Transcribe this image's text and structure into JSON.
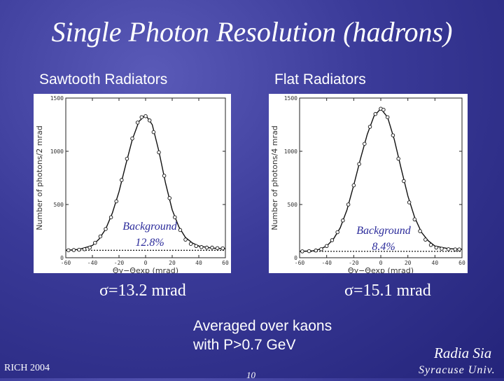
{
  "title": "Single Photon Resolution (hadrons)",
  "note_lines": [
    "Averaged over kaons",
    "with P>0.7 GeV"
  ],
  "footer": {
    "left": "RICH 2004",
    "page": "10",
    "author": "Radia Sia",
    "affiliation": "Syracuse Univ."
  },
  "chart_data": [
    {
      "type": "line",
      "title": "Sawtooth Radiators",
      "xlabel": "Θγ−Θexp (mrad)",
      "ylabel": "Number of photons/2 mrad",
      "xlim": [
        -60,
        60
      ],
      "ylim": [
        0,
        1500
      ],
      "xticks": [
        "-60",
        "-40",
        "-20",
        "0",
        "20",
        "40",
        "60"
      ],
      "yticks": [
        "0",
        "500",
        "1000",
        "1500"
      ],
      "background_level": 70,
      "annotation": [
        "Background",
        "12.8%"
      ],
      "sigma_text": "σ=13.2 mrad",
      "points": [
        [
          -58,
          70
        ],
        [
          -54,
          72
        ],
        [
          -50,
          75
        ],
        [
          -46,
          80
        ],
        [
          -42,
          95
        ],
        [
          -38,
          140
        ],
        [
          -34,
          200
        ],
        [
          -30,
          270
        ],
        [
          -26,
          380
        ],
        [
          -22,
          530
        ],
        [
          -18,
          730
        ],
        [
          -14,
          930
        ],
        [
          -10,
          1120
        ],
        [
          -6,
          1270
        ],
        [
          -3,
          1320
        ],
        [
          0,
          1330
        ],
        [
          3,
          1290
        ],
        [
          6,
          1180
        ],
        [
          10,
          990
        ],
        [
          14,
          770
        ],
        [
          18,
          560
        ],
        [
          22,
          380
        ],
        [
          26,
          260
        ],
        [
          30,
          170
        ],
        [
          34,
          130
        ],
        [
          38,
          110
        ],
        [
          42,
          100
        ],
        [
          46,
          95
        ],
        [
          50,
          95
        ],
        [
          54,
          90
        ],
        [
          58,
          88
        ]
      ],
      "fit": [
        [
          -60,
          70
        ],
        [
          -50,
          78
        ],
        [
          -40,
          115
        ],
        [
          -35,
          175
        ],
        [
          -30,
          270
        ],
        [
          -25,
          420
        ],
        [
          -20,
          620
        ],
        [
          -15,
          870
        ],
        [
          -10,
          1110
        ],
        [
          -5,
          1280
        ],
        [
          0,
          1340
        ],
        [
          5,
          1250
        ],
        [
          10,
          1000
        ],
        [
          15,
          700
        ],
        [
          20,
          450
        ],
        [
          25,
          290
        ],
        [
          30,
          190
        ],
        [
          35,
          140
        ],
        [
          40,
          110
        ],
        [
          50,
          90
        ],
        [
          60,
          85
        ]
      ]
    },
    {
      "type": "line",
      "title": "Flat Radiators",
      "xlabel": "Θγ−Θexp (mrad)",
      "ylabel": "Number of photons/4 mrad",
      "xlim": [
        -60,
        60
      ],
      "ylim": [
        0,
        1500
      ],
      "xticks": [
        "-60",
        "-40",
        "-20",
        "0",
        "20",
        "40",
        "60"
      ],
      "yticks": [
        "0",
        "500",
        "1000",
        "1500"
      ],
      "background_level": 60,
      "annotation": [
        "Background",
        "8.4%"
      ],
      "sigma_text": "σ=15.1 mrad",
      "points": [
        [
          -58,
          60
        ],
        [
          -53,
          62
        ],
        [
          -48,
          68
        ],
        [
          -44,
          80
        ],
        [
          -40,
          110
        ],
        [
          -36,
          165
        ],
        [
          -32,
          240
        ],
        [
          -28,
          350
        ],
        [
          -24,
          500
        ],
        [
          -20,
          680
        ],
        [
          -16,
          880
        ],
        [
          -12,
          1070
        ],
        [
          -8,
          1230
        ],
        [
          -4,
          1350
        ],
        [
          0,
          1400
        ],
        [
          2,
          1390
        ],
        [
          5,
          1320
        ],
        [
          9,
          1150
        ],
        [
          13,
          930
        ],
        [
          17,
          720
        ],
        [
          21,
          520
        ],
        [
          25,
          360
        ],
        [
          29,
          250
        ],
        [
          33,
          170
        ],
        [
          37,
          120
        ],
        [
          41,
          95
        ],
        [
          45,
          85
        ],
        [
          50,
          80
        ],
        [
          55,
          78
        ],
        [
          58,
          78
        ]
      ],
      "fit": [
        [
          -60,
          60
        ],
        [
          -50,
          65
        ],
        [
          -45,
          80
        ],
        [
          -40,
          110
        ],
        [
          -35,
          175
        ],
        [
          -30,
          280
        ],
        [
          -25,
          450
        ],
        [
          -20,
          680
        ],
        [
          -15,
          930
        ],
        [
          -10,
          1160
        ],
        [
          -5,
          1330
        ],
        [
          0,
          1400
        ],
        [
          5,
          1320
        ],
        [
          10,
          1110
        ],
        [
          15,
          840
        ],
        [
          20,
          580
        ],
        [
          25,
          380
        ],
        [
          30,
          240
        ],
        [
          35,
          160
        ],
        [
          40,
          110
        ],
        [
          50,
          85
        ],
        [
          60,
          80
        ]
      ]
    }
  ]
}
